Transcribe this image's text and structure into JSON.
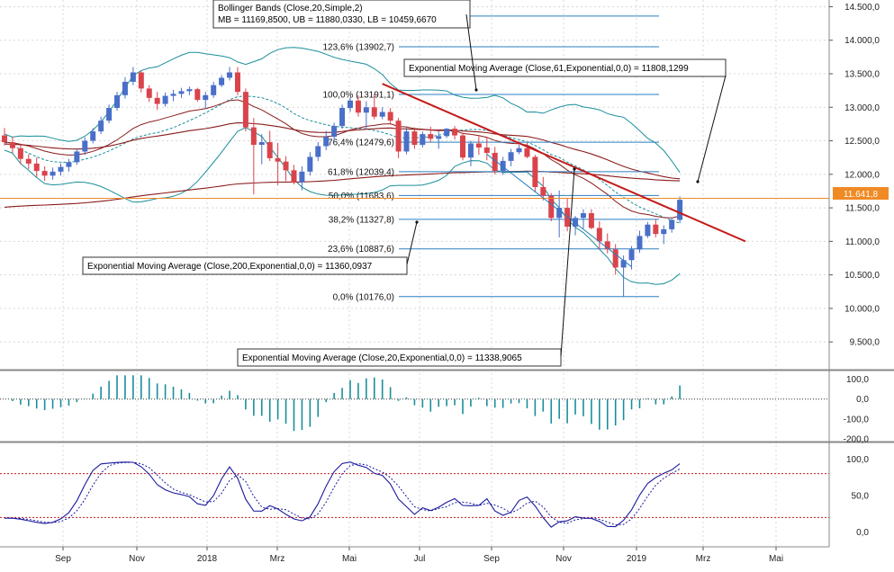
{
  "chart_data": [
    {
      "type": "candlestick",
      "panel": "price",
      "x_categories": [
        "Sep",
        "Nov",
        "2018",
        "Mrz",
        "Mai",
        "Jul",
        "Sep",
        "Nov",
        "2019",
        "Mrz",
        "Mai"
      ],
      "y_ticks": [
        "14.500,0",
        "14.000,0",
        "13.500,0",
        "13.000,0",
        "12.500,0",
        "12.000,0",
        "11.500,0",
        "11.000,0",
        "10.500,0",
        "10.000,0",
        "9.500,0"
      ],
      "y_tick_values": [
        14500,
        14000,
        13500,
        13000,
        12500,
        12000,
        11500,
        11000,
        10500,
        10000,
        9500
      ],
      "ylim": [
        9100,
        14600
      ],
      "current_price_label": "11.641,8",
      "current_price": 11641.8,
      "colors": {
        "up": "#4a6fc8",
        "down": "#d9444c",
        "price_line": "#f08a24",
        "trend": "#c41a1a",
        "fib": "#2a7fc0",
        "bb": "#1a8e9a",
        "ema61": "#8b1c1c",
        "ema200": "#8b1c1c"
      },
      "candles_ohlc": [
        [
          12580,
          12690,
          12430,
          12480
        ],
        [
          12480,
          12560,
          12320,
          12390
        ],
        [
          12390,
          12450,
          12150,
          12230
        ],
        [
          12230,
          12300,
          12080,
          12160
        ],
        [
          12160,
          12250,
          11960,
          12050
        ],
        [
          12050,
          12120,
          11900,
          11980
        ],
        [
          11980,
          12100,
          11920,
          12040
        ],
        [
          12040,
          12160,
          11980,
          12110
        ],
        [
          12110,
          12230,
          12040,
          12180
        ],
        [
          12180,
          12390,
          12140,
          12340
        ],
        [
          12340,
          12550,
          12290,
          12500
        ],
        [
          12500,
          12690,
          12460,
          12640
        ],
        [
          12640,
          12860,
          12600,
          12800
        ],
        [
          12800,
          13040,
          12760,
          12990
        ],
        [
          12990,
          13230,
          12950,
          13180
        ],
        [
          13180,
          13450,
          13130,
          13380
        ],
        [
          13380,
          13600,
          13330,
          13520
        ],
        [
          13520,
          13540,
          13220,
          13280
        ],
        [
          13280,
          13330,
          13080,
          13140
        ],
        [
          13140,
          13230,
          12960,
          13050
        ],
        [
          13050,
          13220,
          13010,
          13170
        ],
        [
          13170,
          13260,
          13090,
          13200
        ],
        [
          13200,
          13290,
          13140,
          13240
        ],
        [
          13240,
          13310,
          13180,
          13270
        ],
        [
          13270,
          13290,
          13080,
          13110
        ],
        [
          13110,
          13230,
          12970,
          13180
        ],
        [
          13180,
          13380,
          13140,
          13330
        ],
        [
          13330,
          13480,
          13300,
          13440
        ],
        [
          13440,
          13600,
          13400,
          13520
        ],
        [
          13520,
          13600,
          13180,
          13230
        ],
        [
          13230,
          13280,
          12640,
          12700
        ],
        [
          12700,
          12840,
          11700,
          12440
        ],
        [
          12440,
          12600,
          12150,
          12480
        ],
        [
          12480,
          12650,
          12200,
          12240
        ],
        [
          12240,
          12470,
          11840,
          12190
        ],
        [
          12190,
          12270,
          11900,
          12060
        ],
        [
          12060,
          12140,
          11850,
          11880
        ],
        [
          11880,
          12120,
          11760,
          12040
        ],
        [
          12040,
          12330,
          11980,
          12260
        ],
        [
          12260,
          12480,
          12200,
          12420
        ],
        [
          12420,
          12650,
          12360,
          12560
        ],
        [
          12560,
          12770,
          12500,
          12720
        ],
        [
          12720,
          13040,
          12680,
          12990
        ],
        [
          12990,
          13150,
          12930,
          13100
        ],
        [
          13100,
          13180,
          12860,
          12920
        ],
        [
          12920,
          13090,
          12680,
          13000
        ],
        [
          13000,
          13200,
          12820,
          12860
        ],
        [
          12860,
          13000,
          12820,
          12930
        ],
        [
          12930,
          12990,
          12740,
          12800
        ],
        [
          12800,
          12840,
          12240,
          12340
        ],
        [
          12340,
          12700,
          12300,
          12640
        ],
        [
          12640,
          12700,
          12380,
          12440
        ],
        [
          12440,
          12640,
          12400,
          12600
        ],
        [
          12600,
          12710,
          12480,
          12530
        ],
        [
          12530,
          12640,
          12380,
          12570
        ],
        [
          12570,
          12690,
          12540,
          12680
        ],
        [
          12680,
          12720,
          12520,
          12580
        ],
        [
          12580,
          12620,
          12210,
          12250
        ],
        [
          12250,
          12500,
          12120,
          12460
        ],
        [
          12460,
          12570,
          12290,
          12400
        ],
        [
          12400,
          12560,
          12210,
          12320
        ],
        [
          12320,
          12410,
          12000,
          12050
        ],
        [
          12050,
          12260,
          11990,
          12200
        ],
        [
          12200,
          12380,
          12120,
          12330
        ],
        [
          12330,
          12440,
          12300,
          12390
        ],
        [
          12390,
          12470,
          12240,
          12260
        ],
        [
          12260,
          12290,
          11730,
          11810
        ],
        [
          11810,
          11960,
          11610,
          11680
        ],
        [
          11680,
          11720,
          11300,
          11350
        ],
        [
          11350,
          11760,
          11060,
          11500
        ],
        [
          11500,
          11650,
          11150,
          11220
        ],
        [
          11220,
          11380,
          11090,
          11350
        ],
        [
          11350,
          11480,
          11190,
          11420
        ],
        [
          11420,
          11480,
          11180,
          11200
        ],
        [
          11200,
          11300,
          10880,
          11000
        ],
        [
          11000,
          11120,
          10820,
          10880
        ],
        [
          10880,
          10960,
          10500,
          10610
        ],
        [
          10610,
          10790,
          10170,
          10720
        ],
        [
          10720,
          10930,
          10580,
          10880
        ],
        [
          10880,
          11160,
          10830,
          11080
        ],
        [
          11080,
          11290,
          11050,
          11250
        ],
        [
          11250,
          11330,
          11060,
          11110
        ],
        [
          11110,
          11240,
          10960,
          11180
        ],
        [
          11180,
          11360,
          11130,
          11320
        ],
        [
          11320,
          11670,
          11270,
          11620
        ]
      ]
    },
    {
      "type": "bar",
      "panel": "oscillator",
      "y_ticks": [
        "100,0",
        "0,0",
        "-100,0",
        "-200,0"
      ],
      "y_tick_values": [
        100,
        0,
        -100,
        -200
      ],
      "ylim": [
        -210,
        135
      ]
    },
    {
      "type": "line",
      "panel": "stochastic",
      "y_ticks": [
        "100,0",
        "50,0",
        "0,0"
      ],
      "y_tick_values": [
        100,
        50,
        0
      ],
      "ylim": [
        -20,
        120
      ],
      "levels": [
        80,
        20
      ]
    }
  ],
  "annotations": {
    "bollinger": {
      "line1": "Bollinger Bands (Close,20,Simple,2)",
      "line2": "MB = 11169,8500, UB = 11880,0330, LB = 10459,6670"
    },
    "ema61": "Exponential Moving Average (Close,61,Exponential,0,0) = 11808,1299",
    "ema200": "Exponential Moving Average (Close,200,Exponential,0,0) = 11360,0937",
    "ema20": "Exponential Moving Average (Close,20,Exponential,0,0) = 11338,9065"
  },
  "fibonacci": [
    {
      "label": "123,6% (13902,7)",
      "value": 13902.7
    },
    {
      "label": "100,0% (13191,1)",
      "value": 13191.1
    },
    {
      "label": "76,4% (12479,6)",
      "value": 12479.6
    },
    {
      "label": "61,8% (12039,4)",
      "value": 12039.4
    },
    {
      "label": "50,0% (11683,6)",
      "value": 11683.6
    },
    {
      "label": "38,2% (11327,8)",
      "value": 11327.8
    },
    {
      "label": "23,6% (10887,6)",
      "value": 10887.6
    },
    {
      "label": "0,0% (10176,0)",
      "value": 10176.0
    }
  ]
}
